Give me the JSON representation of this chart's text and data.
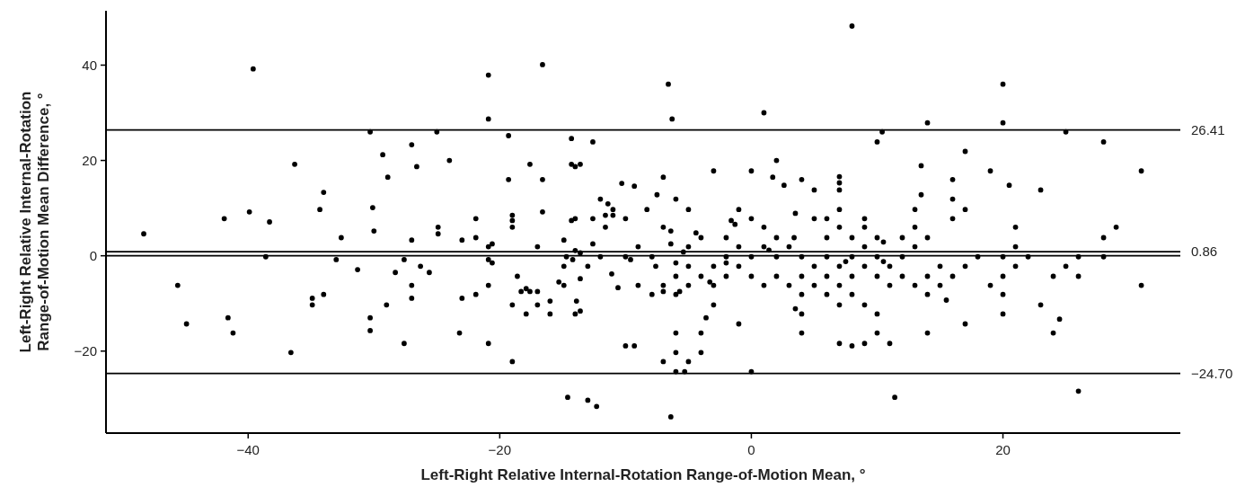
{
  "chart_data": {
    "type": "scatter",
    "xlabel": "Left-Right Relative Internal-Rotation Range-of-Motion Mean, °",
    "ylabel": "Left-Right Relative Internal-Rotation\nRange-of-Motion Mean Difference, °",
    "xlim": [
      -51.3,
      34.1
    ],
    "ylim": [
      -37.2,
      51.4
    ],
    "xticks": [
      {
        "value": -40,
        "label": "−40"
      },
      {
        "value": -20,
        "label": "−20"
      },
      0,
      20
    ],
    "yticks": [
      {
        "value": -20,
        "label": "−20"
      },
      0,
      20,
      40
    ],
    "grid": false,
    "marker": "circle",
    "ref_lines": [
      {
        "axis": "y",
        "value": 26.41,
        "label": "26.41",
        "color": "#000000"
      },
      {
        "axis": "y",
        "value": 0.86,
        "label": "0.86",
        "color": "#000000"
      },
      {
        "axis": "y",
        "value": 0,
        "label": null,
        "color": "#000000"
      },
      {
        "axis": "y",
        "value": -24.7,
        "label": "−24.70",
        "color": "#000000"
      }
    ],
    "series": [
      {
        "color": "#000000",
        "x": [
          -39.6,
          -30.3,
          -25.0,
          -27.0,
          -29.3,
          -26.6,
          -24.0,
          -36.3,
          -28.9,
          -34.0,
          -48.3,
          -41.9,
          -39.9,
          -38.3,
          -34.3,
          -30.1,
          -30.0,
          -32.6,
          -27.0,
          -24.9,
          -24.9,
          -38.6,
          -33.0,
          -31.3,
          -27.6,
          -28.3,
          -26.3,
          -25.6,
          -27.0,
          -27.0,
          -29.0,
          -45.6,
          -44.9,
          -41.6,
          -41.2,
          -34.9,
          -34.9,
          -34.0,
          -36.6,
          -30.3,
          -30.3,
          -27.6,
          -20.9,
          -16.6,
          -6.6,
          1.0,
          -20.9,
          -6.3,
          -19.3,
          -14.3,
          -12.6,
          -17.6,
          -14.3,
          -14.0,
          -13.6,
          -19.3,
          -16.6,
          -3.0,
          0.0,
          2.0,
          1.7,
          2.6,
          4.0,
          -10.3,
          -9.3,
          -7.0,
          -7.5,
          -12.0,
          -11.4,
          -6.0,
          -21.9,
          -23.0,
          -21.9,
          -19.0,
          -19.0,
          -19.0,
          -16.6,
          -20.9,
          -20.6,
          -20.9,
          -20.6,
          -20.9,
          -23.0,
          -21.9,
          -23.2,
          -20.9,
          -19.0,
          -17.0,
          -18.6,
          -18.3,
          -17.9,
          -17.6,
          -17.0,
          -19.0,
          -17.0,
          -17.9,
          -16.0,
          -16.0,
          -14.9,
          -14.7,
          -14.2,
          -14.9,
          -15.3,
          -14.9,
          -14.3,
          -14.0,
          -14.0,
          -13.6,
          -13.0,
          -13.6,
          -13.9,
          -14.0,
          -13.6,
          -12.6,
          -12.6,
          -12.0,
          -11.6,
          -11.6,
          -11.0,
          -11.0,
          -10.0,
          -8.3,
          -11.1,
          -10.6,
          -10.0,
          -9.6,
          -9.0,
          -9.0,
          -7.9,
          -7.6,
          -7.9,
          -7.0,
          -7.0,
          -7.0,
          -6.4,
          -6.4,
          -6.0,
          -6.0,
          -6.0,
          -5.7,
          -5.0,
          -4.4,
          -4.0,
          -5.0,
          -5.4,
          -5.0,
          -5.0,
          -4.0,
          -3.3,
          -3.0,
          -3.0,
          -3.0,
          -3.6,
          -6.0,
          -4.0,
          -6.0,
          -4.0,
          -7.0,
          -5.0,
          -6.0,
          -5.3,
          0.0,
          -10.0,
          -9.3,
          -14.6,
          -13.0,
          -12.3,
          -6.4,
          -2.0,
          -1.6,
          -1.3,
          -1.0,
          -2.0,
          -2.0,
          -2.0,
          -1.0,
          -1.0,
          -1.0,
          0.0,
          0.0,
          0.0,
          1.0,
          1.0,
          1.4,
          1.0,
          2.0,
          2.0,
          2.0,
          3.0,
          3.0,
          3.4,
          3.5,
          4.0,
          4.0,
          4.0,
          3.5,
          4.0,
          4.0,
          8.0,
          20.0,
          14.0,
          20.0,
          10.4,
          25.0,
          10.0,
          28.0,
          17.0,
          13.5,
          19.0,
          31.0,
          7.0,
          7.0,
          7.0,
          5.0,
          16.0,
          20.5,
          23.0,
          13.5,
          16.0,
          7.0,
          13.0,
          17.0,
          5.0,
          6.0,
          9.0,
          16.0,
          7.0,
          9.0,
          13.0,
          21.0,
          29.0,
          6.0,
          8.0,
          10.0,
          10.5,
          12.0,
          14.0,
          13.0,
          9.0,
          21.0,
          28.0,
          6.0,
          8.0,
          10.0,
          12.0,
          18.0,
          20.0,
          22.0,
          26.0,
          28.0,
          7.5,
          10.5,
          5.0,
          7.0,
          9.0,
          11.0,
          15.0,
          17.0,
          21.0,
          25.0,
          6.0,
          8.0,
          10.0,
          12.0,
          14.0,
          16.0,
          20.0,
          24.0,
          26.0,
          5.0,
          7.0,
          11.0,
          13.0,
          15.0,
          19.0,
          31.0,
          6.0,
          8.0,
          14.0,
          20.0,
          15.5,
          7.0,
          9.0,
          23.0,
          10.0,
          20.0,
          24.5,
          17.0,
          10.0,
          14.0,
          24.0,
          7.0,
          8.0,
          9.0,
          11.0,
          11.4,
          26.0
        ],
        "values": [
          39.2,
          26.0,
          26.0,
          23.3,
          21.2,
          18.7,
          20.0,
          19.2,
          16.5,
          13.3,
          4.6,
          7.8,
          9.2,
          7.1,
          9.7,
          10.1,
          5.2,
          3.8,
          3.3,
          6.0,
          4.6,
          -0.2,
          -0.8,
          -2.9,
          -0.8,
          -3.5,
          -2.2,
          -3.5,
          -6.2,
          -8.9,
          -10.3,
          -6.2,
          -14.3,
          -13.0,
          -16.2,
          -8.9,
          -10.3,
          -8.1,
          -20.3,
          -13.0,
          -15.7,
          -18.4,
          37.9,
          40.1,
          36.0,
          30.0,
          28.7,
          28.7,
          25.2,
          24.6,
          23.9,
          19.2,
          19.2,
          18.7,
          19.2,
          16.0,
          16.0,
          17.8,
          17.8,
          20.0,
          16.5,
          14.8,
          16.0,
          15.2,
          14.6,
          16.5,
          12.8,
          11.9,
          10.9,
          11.9,
          7.8,
          3.3,
          3.8,
          8.5,
          7.4,
          6.0,
          9.2,
          1.9,
          2.5,
          -0.8,
          -1.5,
          -6.2,
          -8.9,
          -8.1,
          -16.2,
          -18.4,
          -22.2,
          1.9,
          -4.3,
          -7.5,
          -6.9,
          -7.5,
          -7.5,
          -10.3,
          -10.3,
          -12.2,
          -9.5,
          -12.2,
          3.3,
          -0.2,
          -0.8,
          -2.2,
          -5.5,
          -6.2,
          7.4,
          7.8,
          1.1,
          0.6,
          -2.2,
          -4.8,
          -9.5,
          -12.2,
          -11.6,
          7.8,
          2.5,
          -0.2,
          6.0,
          8.5,
          8.5,
          9.7,
          7.8,
          9.7,
          -3.8,
          -6.7,
          -0.2,
          -0.8,
          1.9,
          -6.2,
          -0.2,
          -2.2,
          -8.1,
          -6.2,
          -7.5,
          6.0,
          5.2,
          2.5,
          -1.5,
          -4.3,
          -8.1,
          -7.5,
          9.7,
          4.8,
          3.8,
          1.9,
          0.8,
          -2.2,
          -6.2,
          -4.3,
          -5.5,
          -6.2,
          -2.2,
          -10.3,
          -13.0,
          -16.2,
          -16.2,
          -20.3,
          -20.3,
          -22.2,
          -22.2,
          -24.3,
          -24.3,
          -24.3,
          -18.9,
          -18.9,
          -29.7,
          -30.3,
          -31.6,
          -33.8,
          3.8,
          7.4,
          6.6,
          9.7,
          -0.2,
          -1.5,
          -4.3,
          1.9,
          -2.2,
          -14.3,
          7.8,
          -0.2,
          -4.3,
          6.0,
          1.9,
          1.2,
          -6.2,
          3.8,
          -0.2,
          -4.3,
          1.9,
          -6.2,
          3.8,
          8.9,
          -0.2,
          -4.3,
          -8.1,
          -11.1,
          -12.2,
          -16.2,
          48.2,
          36.0,
          27.9,
          27.9,
          26.0,
          26.0,
          23.9,
          23.9,
          21.9,
          18.9,
          17.8,
          17.8,
          16.6,
          15.3,
          13.8,
          13.8,
          16.0,
          14.8,
          13.8,
          12.8,
          11.9,
          9.7,
          9.7,
          9.7,
          7.8,
          7.8,
          7.8,
          7.8,
          6.0,
          6.0,
          6.0,
          6.0,
          6.0,
          3.8,
          3.8,
          3.8,
          2.9,
          3.8,
          3.8,
          1.9,
          1.9,
          1.9,
          3.8,
          -0.2,
          -0.2,
          -0.2,
          -0.2,
          -0.2,
          -0.2,
          -0.2,
          -0.2,
          -0.2,
          -1.2,
          -1.2,
          -2.2,
          -2.2,
          -2.2,
          -2.2,
          -2.2,
          -2.2,
          -2.2,
          -2.2,
          -4.3,
          -4.3,
          -4.3,
          -4.3,
          -4.3,
          -4.3,
          -4.3,
          -4.3,
          -4.3,
          -6.2,
          -6.2,
          -6.2,
          -6.2,
          -6.2,
          -6.2,
          -6.2,
          -8.1,
          -8.1,
          -8.1,
          -8.1,
          -9.3,
          -10.3,
          -10.3,
          -10.3,
          -12.2,
          -12.2,
          -13.3,
          -14.3,
          -16.2,
          -16.2,
          -16.2,
          -18.4,
          -18.9,
          -18.4,
          -18.4,
          -29.7,
          -28.4
        ]
      }
    ]
  }
}
